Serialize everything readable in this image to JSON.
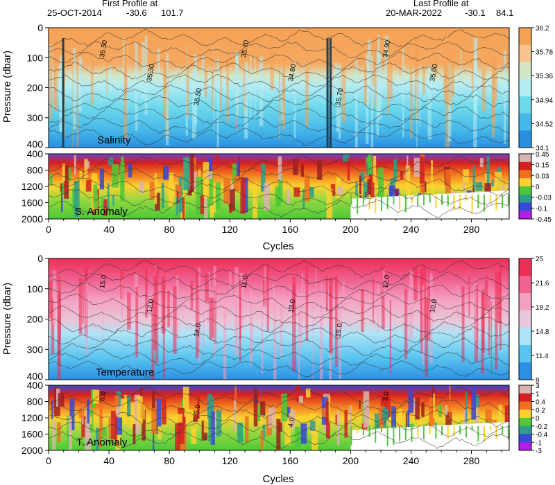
{
  "header": {
    "first_label": "First Profile at",
    "first_date": "25-OCT-2014",
    "first_lat": "-30.6",
    "first_lon": "101.7",
    "last_label": "Last Profile at",
    "last_date": "20-MAR-2022",
    "last_lat": "-30.1",
    "last_lon": "84.1"
  },
  "chart_data": [
    {
      "id": "salinity",
      "type": "heatmap",
      "label": "Salinity",
      "ylabel": "Pressure (dbar)",
      "xlim": [
        0,
        305
      ],
      "ylim": [
        400,
        0
      ],
      "yticks": [
        0,
        100,
        200,
        300,
        400
      ],
      "colorbar_ticks": [
        "36.2",
        "35.78",
        "35.36",
        "34.94",
        "34.52",
        "34.1"
      ],
      "colors": [
        "#f5a255",
        "#f8c48e",
        "#d2e6c8",
        "#b4ecf2",
        "#6fd9ec",
        "#45b7e8",
        "#2a8fe0"
      ]
    },
    {
      "id": "s_anomaly",
      "type": "heatmap",
      "label": "S. Anomaly",
      "xlabel": "Cycles",
      "xlim": [
        0,
        305
      ],
      "ylim": [
        2000,
        400
      ],
      "xticks": [
        0,
        40,
        80,
        120,
        160,
        200,
        240,
        280
      ],
      "yticks": [
        400,
        800,
        1200,
        1600,
        2000
      ],
      "colorbar_ticks": [
        "0.45",
        "0.15",
        "0.03",
        "0",
        "-0.03",
        "-0.1",
        "-0.45"
      ],
      "colors": [
        "#d8b4b0",
        "#d42020",
        "#f07020",
        "#fcd230",
        "#4ec838",
        "#2f9c8c",
        "#3848d8",
        "#b020e0"
      ]
    },
    {
      "id": "temperature",
      "type": "heatmap",
      "label": "Temperature",
      "ylabel": "Pressure (dbar)",
      "xlim": [
        0,
        305
      ],
      "ylim": [
        400,
        0
      ],
      "yticks": [
        0,
        100,
        200,
        300,
        400
      ],
      "colorbar_ticks": [
        "25",
        "21.6",
        "18.2",
        "14.8",
        "11.4",
        "8"
      ],
      "colors": [
        "#ee2d56",
        "#f06290",
        "#f4a0c2",
        "#e8c8da",
        "#aee4f6",
        "#5ac4f0",
        "#2b8fe3"
      ]
    },
    {
      "id": "t_anomaly",
      "type": "heatmap",
      "label": "T. Anomaly",
      "xlabel": "Cycles",
      "xlim": [
        0,
        305
      ],
      "ylim": [
        2000,
        400
      ],
      "xticks": [
        0,
        40,
        80,
        120,
        160,
        200,
        240,
        280
      ],
      "yticks": [
        400,
        800,
        1200,
        1600,
        2000
      ],
      "colorbar_ticks": [
        "3",
        "1",
        "0.4",
        "0.2",
        "0",
        "-0.2",
        "-0.4",
        "-1",
        "-3"
      ],
      "colors": [
        "#d8b4b0",
        "#d42020",
        "#f07020",
        "#fcd230",
        "#4ec838",
        "#2f9c8c",
        "#3848d8",
        "#b020e0"
      ]
    }
  ],
  "contour_labels": {
    "salinity": [
      "35.50",
      "35.30",
      "35.50",
      "35.70",
      "34.80",
      "35.70",
      "34.90",
      "35.00"
    ],
    "temperature": [
      "15.0",
      "12.0",
      "14.0",
      "11.0",
      "13.0",
      "15.0",
      "12.0",
      "10.0"
    ],
    "t_anomaly": [
      "6.0",
      "5.0",
      "4.0",
      "3.0"
    ]
  }
}
